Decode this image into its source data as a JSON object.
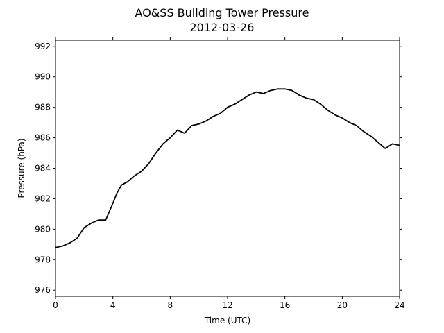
{
  "chart_data": {
    "type": "line",
    "title": "AO&SS Building Tower Pressure",
    "subtitle": "2012-03-26",
    "xlabel": "Time (UTC)",
    "ylabel": "Pressure (hPa)",
    "xlim": [
      0,
      24
    ],
    "ylim": [
      975.6,
      992.4
    ],
    "xticks": [
      0,
      4,
      8,
      12,
      16,
      20,
      24
    ],
    "yticks": [
      976,
      978,
      980,
      982,
      984,
      986,
      988,
      990,
      992
    ],
    "grid": false,
    "line_color": "#000000",
    "series": [
      {
        "x": [
          0,
          0.5,
          1.0,
          1.5,
          2.0,
          2.5,
          3.0,
          3.5,
          4.0,
          4.3,
          4.6,
          5.0,
          5.5,
          6.0,
          6.5,
          7.0,
          7.5,
          8.0,
          8.5,
          9.0,
          9.5,
          10.0,
          10.5,
          11.0,
          11.5,
          12.0,
          12.5,
          13.0,
          13.5,
          14.0,
          14.5,
          15.0,
          15.5,
          16.0,
          16.5,
          17.0,
          17.5,
          18.0,
          18.5,
          19.0,
          19.5,
          20.0,
          20.5,
          21.0,
          21.5,
          22.0,
          22.5,
          23.0,
          23.5,
          24.0
        ],
        "y": [
          978.8,
          978.9,
          979.1,
          979.4,
          980.1,
          980.4,
          980.6,
          980.6,
          981.7,
          982.4,
          982.9,
          983.1,
          983.5,
          983.8,
          984.3,
          985.0,
          985.6,
          986.0,
          986.5,
          986.3,
          986.8,
          986.9,
          987.1,
          987.4,
          987.6,
          988.0,
          988.2,
          988.5,
          988.8,
          989.0,
          988.9,
          989.1,
          989.2,
          989.2,
          989.1,
          988.8,
          988.6,
          988.5,
          988.2,
          987.8,
          987.5,
          987.3,
          987.0,
          986.8,
          986.4,
          986.1,
          985.7,
          985.3,
          985.6,
          985.5
        ]
      }
    ]
  }
}
